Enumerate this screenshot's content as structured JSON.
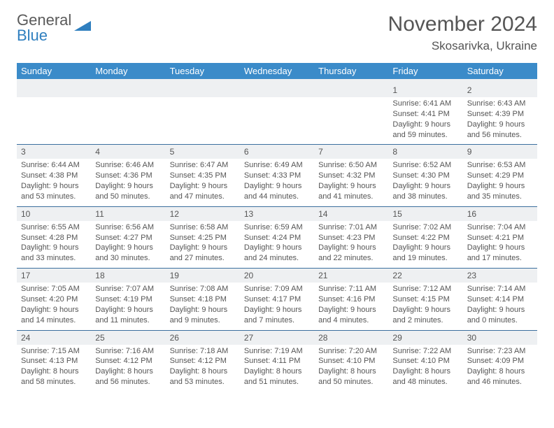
{
  "brand": {
    "line1": "General",
    "line2": "Blue"
  },
  "title": "November 2024",
  "location": "Skosarivka, Ukraine",
  "colors": {
    "header_bg": "#3b8bc9",
    "header_text": "#ffffff",
    "row_divider": "#3b6f9e",
    "daynum_bg": "#eef0f2",
    "body_text": "#555555",
    "brand_gray": "#5a5a5a",
    "brand_blue": "#2f7fbf"
  },
  "weekdays": [
    "Sunday",
    "Monday",
    "Tuesday",
    "Wednesday",
    "Thursday",
    "Friday",
    "Saturday"
  ],
  "weeks": [
    {
      "nums": [
        "",
        "",
        "",
        "",
        "",
        "1",
        "2"
      ],
      "cells": [
        "",
        "",
        "",
        "",
        "",
        "Sunrise: 6:41 AM\nSunset: 4:41 PM\nDaylight: 9 hours and 59 minutes.",
        "Sunrise: 6:43 AM\nSunset: 4:39 PM\nDaylight: 9 hours and 56 minutes."
      ]
    },
    {
      "nums": [
        "3",
        "4",
        "5",
        "6",
        "7",
        "8",
        "9"
      ],
      "cells": [
        "Sunrise: 6:44 AM\nSunset: 4:38 PM\nDaylight: 9 hours and 53 minutes.",
        "Sunrise: 6:46 AM\nSunset: 4:36 PM\nDaylight: 9 hours and 50 minutes.",
        "Sunrise: 6:47 AM\nSunset: 4:35 PM\nDaylight: 9 hours and 47 minutes.",
        "Sunrise: 6:49 AM\nSunset: 4:33 PM\nDaylight: 9 hours and 44 minutes.",
        "Sunrise: 6:50 AM\nSunset: 4:32 PM\nDaylight: 9 hours and 41 minutes.",
        "Sunrise: 6:52 AM\nSunset: 4:30 PM\nDaylight: 9 hours and 38 minutes.",
        "Sunrise: 6:53 AM\nSunset: 4:29 PM\nDaylight: 9 hours and 35 minutes."
      ]
    },
    {
      "nums": [
        "10",
        "11",
        "12",
        "13",
        "14",
        "15",
        "16"
      ],
      "cells": [
        "Sunrise: 6:55 AM\nSunset: 4:28 PM\nDaylight: 9 hours and 33 minutes.",
        "Sunrise: 6:56 AM\nSunset: 4:27 PM\nDaylight: 9 hours and 30 minutes.",
        "Sunrise: 6:58 AM\nSunset: 4:25 PM\nDaylight: 9 hours and 27 minutes.",
        "Sunrise: 6:59 AM\nSunset: 4:24 PM\nDaylight: 9 hours and 24 minutes.",
        "Sunrise: 7:01 AM\nSunset: 4:23 PM\nDaylight: 9 hours and 22 minutes.",
        "Sunrise: 7:02 AM\nSunset: 4:22 PM\nDaylight: 9 hours and 19 minutes.",
        "Sunrise: 7:04 AM\nSunset: 4:21 PM\nDaylight: 9 hours and 17 minutes."
      ]
    },
    {
      "nums": [
        "17",
        "18",
        "19",
        "20",
        "21",
        "22",
        "23"
      ],
      "cells": [
        "Sunrise: 7:05 AM\nSunset: 4:20 PM\nDaylight: 9 hours and 14 minutes.",
        "Sunrise: 7:07 AM\nSunset: 4:19 PM\nDaylight: 9 hours and 11 minutes.",
        "Sunrise: 7:08 AM\nSunset: 4:18 PM\nDaylight: 9 hours and 9 minutes.",
        "Sunrise: 7:09 AM\nSunset: 4:17 PM\nDaylight: 9 hours and 7 minutes.",
        "Sunrise: 7:11 AM\nSunset: 4:16 PM\nDaylight: 9 hours and 4 minutes.",
        "Sunrise: 7:12 AM\nSunset: 4:15 PM\nDaylight: 9 hours and 2 minutes.",
        "Sunrise: 7:14 AM\nSunset: 4:14 PM\nDaylight: 9 hours and 0 minutes."
      ]
    },
    {
      "nums": [
        "24",
        "25",
        "26",
        "27",
        "28",
        "29",
        "30"
      ],
      "cells": [
        "Sunrise: 7:15 AM\nSunset: 4:13 PM\nDaylight: 8 hours and 58 minutes.",
        "Sunrise: 7:16 AM\nSunset: 4:12 PM\nDaylight: 8 hours and 56 minutes.",
        "Sunrise: 7:18 AM\nSunset: 4:12 PM\nDaylight: 8 hours and 53 minutes.",
        "Sunrise: 7:19 AM\nSunset: 4:11 PM\nDaylight: 8 hours and 51 minutes.",
        "Sunrise: 7:20 AM\nSunset: 4:10 PM\nDaylight: 8 hours and 50 minutes.",
        "Sunrise: 7:22 AM\nSunset: 4:10 PM\nDaylight: 8 hours and 48 minutes.",
        "Sunrise: 7:23 AM\nSunset: 4:09 PM\nDaylight: 8 hours and 46 minutes."
      ]
    }
  ]
}
